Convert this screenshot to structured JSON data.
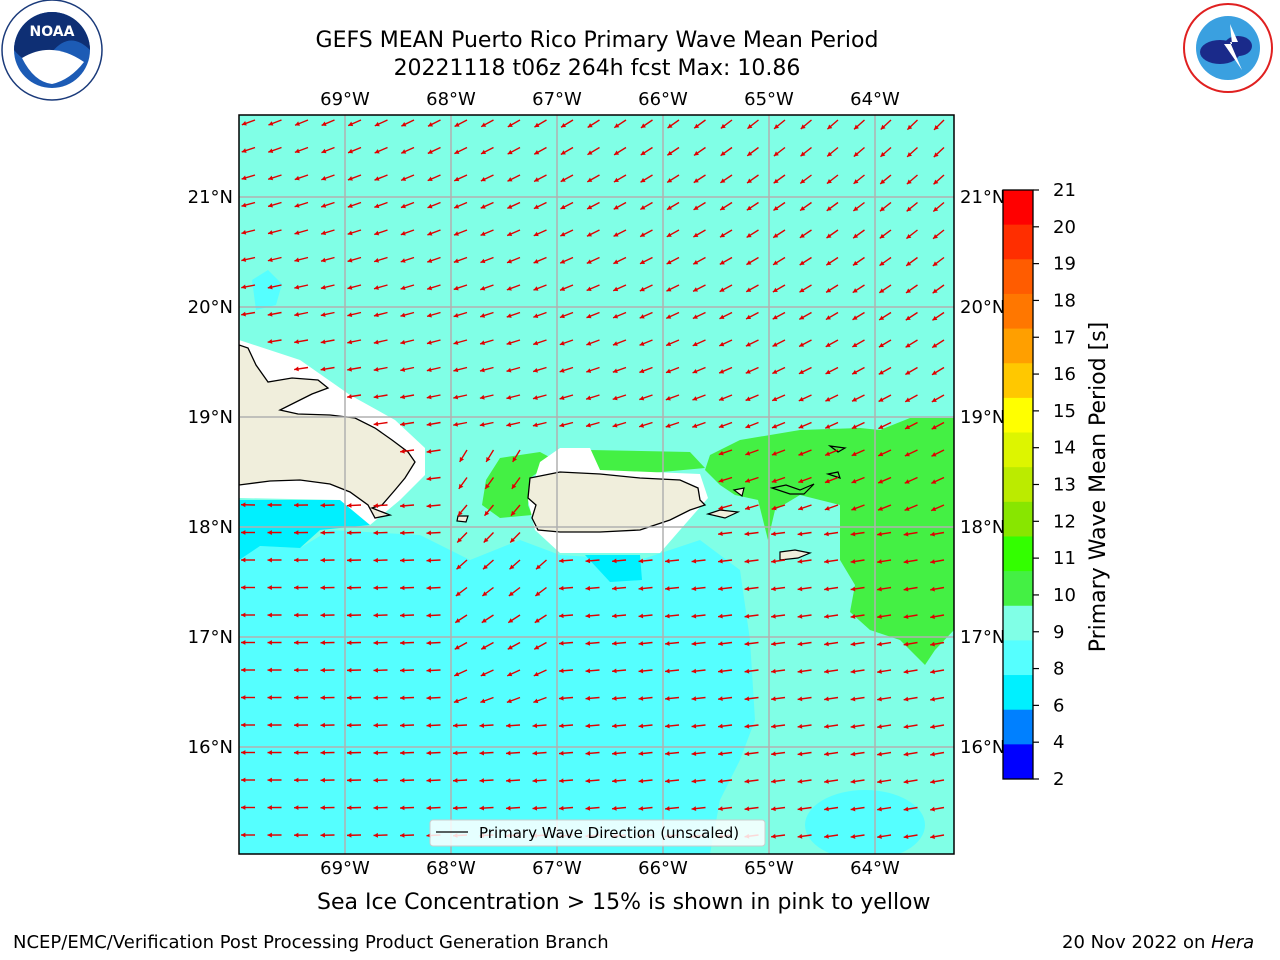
{
  "header": {
    "title_line1": "GEFS MEAN Puerto Rico Primary Wave Mean Period",
    "title_line2": "20221118 t06z 264h fcst   Max: 10.86"
  },
  "logos": {
    "left": "NOAA",
    "left_ring": "NATIONAL OCEANIC AND ATMOSPHERIC ADMINISTRATION · U.S. DEPARTMENT OF COMMERCE",
    "right_ring": "NATIONAL WEATHER SERVICE"
  },
  "map": {
    "lon_labels": [
      "69°W",
      "68°W",
      "67°W",
      "66°W",
      "65°W",
      "64°W"
    ],
    "lat_labels": [
      "21°N",
      "20°N",
      "19°N",
      "18°N",
      "17°N",
      "16°N"
    ],
    "lon_values": [
      -69,
      -68,
      -67,
      -66,
      -65,
      -64
    ],
    "lat_values": [
      21,
      20,
      19,
      18,
      17,
      16
    ],
    "legend_label": "Primary Wave Direction (unscaled)",
    "background_color": "#80FFE6"
  },
  "colorbar": {
    "label": "Primary Wave Mean Period [s]",
    "ticks": [
      "21",
      "20",
      "19",
      "18",
      "17",
      "16",
      "15",
      "14",
      "13",
      "12",
      "11",
      "10",
      "9",
      "8",
      "6",
      "4",
      "2"
    ],
    "colors": [
      "#FF0000",
      "#FF2E00",
      "#FF5C00",
      "#FF7700",
      "#FF9F00",
      "#FFC800",
      "#FFFF00",
      "#DDF500",
      "#BBEB00",
      "#88E600",
      "#33FF00",
      "#44F044",
      "#80FFE6",
      "#55FFFF",
      "#00F0FF",
      "#0080FF",
      "#0000FF"
    ]
  },
  "footer": {
    "note": "Sea Ice Concentration > 15% is shown in pink to yellow",
    "left": "NCEP/EMC/Verification Post Processing Product Generation Branch",
    "right_date": "20 Nov 2022 on ",
    "right_machine": "Hera"
  }
}
